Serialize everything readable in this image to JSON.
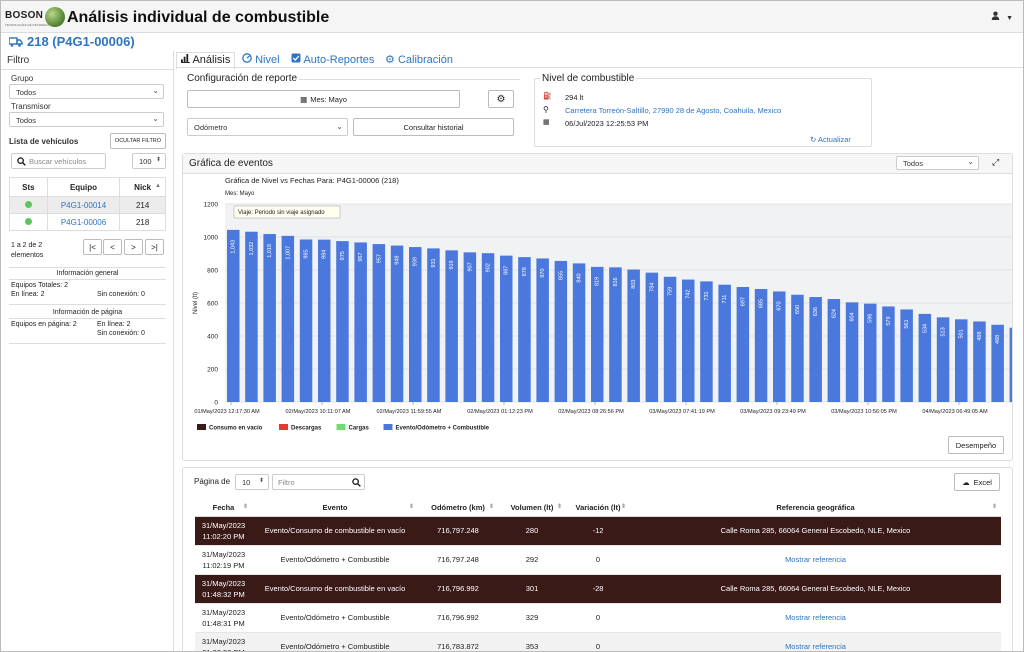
{
  "header": {
    "logo_text": "BOSON",
    "logo_tagline": "TECNOLOGÍAS DE INFORMACIÓN",
    "title": "Análisis individual de combustible",
    "user_icon": "user-icon"
  },
  "vehicle_title": "218 (P4G1-00006)",
  "sidebar": {
    "title": "Filtro",
    "group_label": "Grupo",
    "group_value": "Todos",
    "transmitter_label": "Transmisor",
    "transmitter_value": "Todos",
    "vehicle_list_label": "Lista de vehículos",
    "hide_filter": "OCULTAR FILTRO",
    "search_placeholder": "Buscar vehículos",
    "page_size": "100",
    "columns": [
      "Sts",
      "Equipo",
      "Nick"
    ],
    "rows": [
      {
        "equipo": "P4G1-00014",
        "nick": "214"
      },
      {
        "equipo": "P4G1-00006",
        "nick": "218"
      }
    ],
    "range_text_1": "1 a 2 de 2",
    "range_text_2": "elementos",
    "pager": [
      "|<",
      "<",
      ">",
      ">|"
    ],
    "general_info_title": "Información general",
    "total_equipment": "Equipos Totales: 2",
    "online": "En línea: 2",
    "offline": "Sin conexión: 0",
    "page_info_title": "Información de página",
    "page_equipment": "Equipos en página: 2",
    "page_online": "En línea: 2",
    "page_offline": "Sin conexión: 0"
  },
  "tabs": [
    {
      "label": "Análisis",
      "icon": "bar-chart-icon"
    },
    {
      "label": "Nivel",
      "icon": "gauge-icon"
    },
    {
      "label": "Auto-Reportes",
      "icon": "checkbox-icon"
    },
    {
      "label": "Calibración",
      "icon": "gear-icon"
    }
  ],
  "config": {
    "title": "Configuración de reporte",
    "month_button": "Mes: Mayo",
    "metric_value": "Odómetro",
    "history_button": "Consultar historial"
  },
  "fuel": {
    "title": "Nivel de combustible",
    "volume": "294 lt",
    "address": "Carretera Torreón-Saltillo, 27990 28 de Agosto, Coahuila, Mexico",
    "timestamp": "06/Jul/2023 12:25:53 PM",
    "refresh": "Actualizar"
  },
  "chart_panel": {
    "title": "Gráfica de eventos",
    "filter_value": "Todos",
    "performance_button": "Desempeño"
  },
  "chart_data": {
    "type": "bar",
    "title": "Gráfica de Nivel vs Fechas Para: P4G1-00006 (218)",
    "subtitle": "Mes: Mayo",
    "ylabel": "Nivel (lt)",
    "ylim": [
      0,
      1200
    ],
    "yticks": [
      0,
      200,
      400,
      600,
      800,
      1000,
      1200
    ],
    "grid": true,
    "tooltip": "Viaje: Periodo sin viaje asignado",
    "x_tick_labels": [
      "01/May/2023 12:17:30 AM",
      "02/May/2023 10:11:07 AM",
      "02/May/2023 11:59:55 AM",
      "02/May/2023 01:12:23 PM",
      "02/May/2023 08:26:56 PM",
      "03/May/2023 07:41:19 PM",
      "03/May/2023 09:23:49 PM",
      "03/May/2023 10:56:05 PM",
      "04/May/2023 06:49:05 AM"
    ],
    "legend": [
      {
        "name": "Consumo en vacío",
        "color": "#3a1a17"
      },
      {
        "name": "Descargas",
        "color": "#e03c31"
      },
      {
        "name": "Cargas",
        "color": "#6fdc6f"
      },
      {
        "name": "Evento/Odómetro + Combustible",
        "color": "#4a78dd"
      }
    ],
    "legend_position": "bottom-left",
    "series": [
      {
        "name": "Evento/Odómetro + Combustible",
        "color": "#4a78dd",
        "values": [
          1043,
          1032,
          1018,
          1007,
          985,
          984,
          975,
          967,
          957,
          948,
          939,
          931,
          919,
          907,
          902,
          887,
          878,
          870,
          855,
          840,
          819,
          816,
          803,
          784,
          759,
          742,
          731,
          711,
          697,
          685,
          670,
          650,
          636,
          624,
          604,
          596,
          579,
          561,
          534,
          513,
          501,
          488,
          468,
          450
        ]
      }
    ]
  },
  "events": {
    "page_label": "Página de",
    "page_size": "10",
    "filter_placeholder": "Filtro",
    "excel_button": "Excel",
    "columns": [
      "Fecha",
      "Evento",
      "Odómetro (km)",
      "Volumen (lt)",
      "Variación (lt)",
      "Referencia geográfica"
    ],
    "rows": [
      {
        "date": "31/May/2023",
        "time": "11:02:20 PM",
        "event": "Evento/Consumo de combustible en vacío",
        "odometer": "716,797.248",
        "volume": "280",
        "variation": "-12",
        "ref": "Calle Roma 285, 66064 General Escobedo, NLE, Mexico",
        "style": "dark"
      },
      {
        "date": "31/May/2023",
        "time": "11:02:19 PM",
        "event": "Evento/Odómetro + Combustible",
        "odometer": "716,797.248",
        "volume": "292",
        "variation": "0",
        "ref": "Mostrar referencia",
        "style": "light"
      },
      {
        "date": "31/May/2023",
        "time": "01:48:32 PM",
        "event": "Evento/Consumo de combustible en vacío",
        "odometer": "716,796.992",
        "volume": "301",
        "variation": "-28",
        "ref": "Calle Roma 285, 66064 General Escobedo, NLE, Mexico",
        "style": "dark"
      },
      {
        "date": "31/May/2023",
        "time": "01:48:31 PM",
        "event": "Evento/Odómetro + Combustible",
        "odometer": "716,796.992",
        "volume": "329",
        "variation": "0",
        "ref": "Mostrar referencia",
        "style": "light"
      },
      {
        "date": "31/May/2023",
        "time": "01:28:50 PM",
        "event": "Evento/Odómetro + Combustible",
        "odometer": "716,783.872",
        "volume": "353",
        "variation": "0",
        "ref": "Mostrar referencia",
        "style": "grey"
      }
    ]
  }
}
